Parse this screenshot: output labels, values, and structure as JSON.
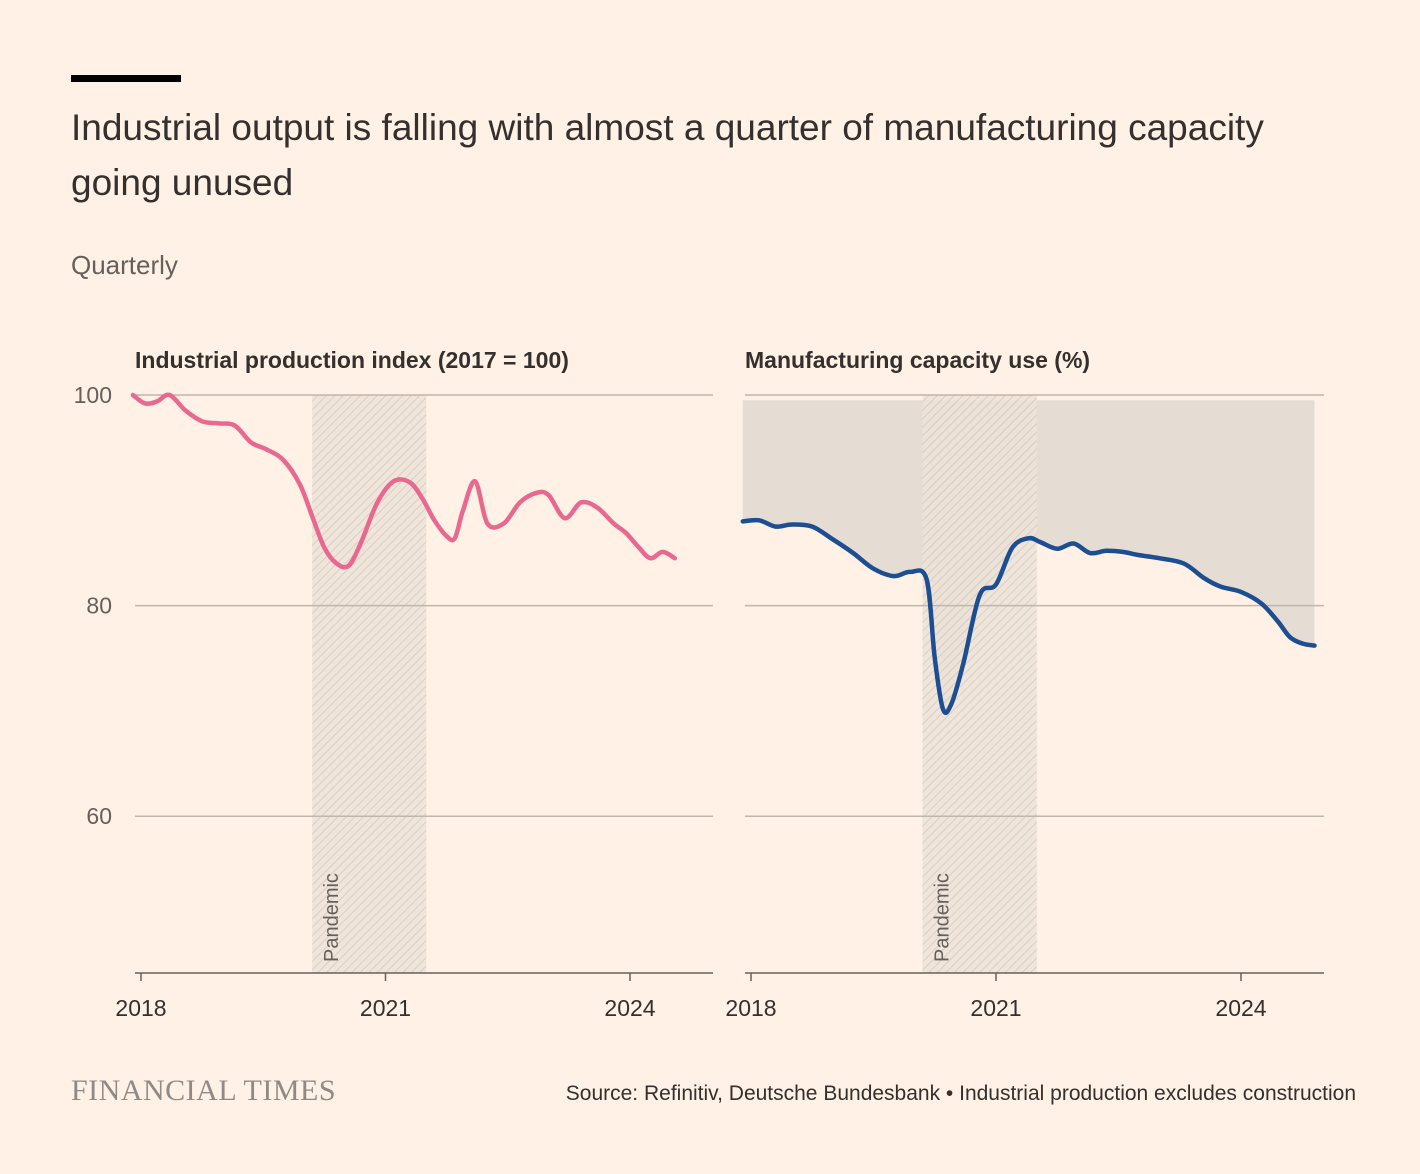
{
  "header": {
    "title": "Industrial output is falling with almost a quarter of manufacturing capacity going unused",
    "subtitle": "Quarterly"
  },
  "footer": {
    "logo": "FINANCIAL TIMES",
    "source": "Source: Refinitiv, Deutsche Bundesbank • Industrial production excludes construction"
  },
  "colors": {
    "background": "#fff1e5",
    "pink": "#e8688f",
    "blue": "#1d4e91",
    "grid": "#bfb6ae",
    "unused_fill": "#e5ddd4"
  },
  "chart_data": [
    {
      "type": "line",
      "title": "Industrial production index (2017 = 100)",
      "xlabel": "",
      "ylabel": "",
      "ylim": [
        45,
        100
      ],
      "yticks": [
        100,
        80,
        60
      ],
      "xlim": [
        2017.9,
        2025.0
      ],
      "xticks": [
        2018,
        2021,
        2024
      ],
      "annotation": {
        "label": "Pandemic",
        "start": 2020.1,
        "end": 2021.5
      },
      "series": [
        {
          "name": "Industrial production",
          "color": "#e8688f",
          "x": [
            2017.9,
            2018.05,
            2018.2,
            2018.35,
            2018.55,
            2018.75,
            2018.95,
            2019.15,
            2019.35,
            2019.55,
            2019.75,
            2019.95,
            2020.1,
            2020.25,
            2020.4,
            2020.55,
            2020.7,
            2020.9,
            2021.1,
            2021.3,
            2021.45,
            2021.6,
            2021.75,
            2021.85,
            2021.95,
            2022.1,
            2022.25,
            2022.45,
            2022.65,
            2022.85,
            2023.0,
            2023.2,
            2023.4,
            2023.6,
            2023.8,
            2023.95,
            2024.1,
            2024.25,
            2024.4,
            2024.55
          ],
          "values": [
            100.0,
            99.2,
            99.4,
            100.0,
            98.5,
            97.5,
            97.3,
            97.1,
            95.5,
            94.8,
            93.8,
            91.5,
            88.5,
            85.5,
            84.0,
            83.8,
            86.0,
            89.8,
            91.8,
            91.7,
            90.2,
            88.1,
            86.6,
            86.4,
            89.0,
            91.8,
            87.8,
            87.8,
            89.8,
            90.7,
            90.5,
            88.3,
            89.8,
            89.3,
            87.8,
            86.9,
            85.6,
            84.5,
            85.1,
            84.5
          ]
        }
      ]
    },
    {
      "type": "area",
      "title": "Manufacturing capacity use (%)",
      "xlabel": "",
      "ylabel": "",
      "ylim": [
        45,
        100
      ],
      "yticks": [
        100,
        80,
        60
      ],
      "xlim": [
        2017.9,
        2025.0
      ],
      "xticks": [
        2018,
        2021,
        2024
      ],
      "annotation": {
        "label": "Pandemic",
        "start": 2020.1,
        "end": 2021.5
      },
      "fill_to": 99.5,
      "series": [
        {
          "name": "Capacity use",
          "color": "#1d4e91",
          "x": [
            2017.9,
            2018.1,
            2018.3,
            2018.5,
            2018.75,
            2019.0,
            2019.25,
            2019.5,
            2019.75,
            2019.95,
            2020.15,
            2020.25,
            2020.35,
            2020.45,
            2020.6,
            2020.8,
            2021.0,
            2021.2,
            2021.4,
            2021.55,
            2021.75,
            2021.95,
            2022.15,
            2022.35,
            2022.55,
            2022.75,
            2023.0,
            2023.3,
            2023.55,
            2023.75,
            2024.0,
            2024.25,
            2024.45,
            2024.6,
            2024.75,
            2024.9
          ],
          "values": [
            88.0,
            88.1,
            87.5,
            87.7,
            87.5,
            86.3,
            85.0,
            83.5,
            82.8,
            83.2,
            82.5,
            75.0,
            70.2,
            70.6,
            74.5,
            81.0,
            82.0,
            85.5,
            86.4,
            86.0,
            85.4,
            85.9,
            85.0,
            85.2,
            85.1,
            84.8,
            84.5,
            84.0,
            82.6,
            81.8,
            81.3,
            80.2,
            78.5,
            77.0,
            76.4,
            76.2
          ]
        }
      ]
    }
  ]
}
